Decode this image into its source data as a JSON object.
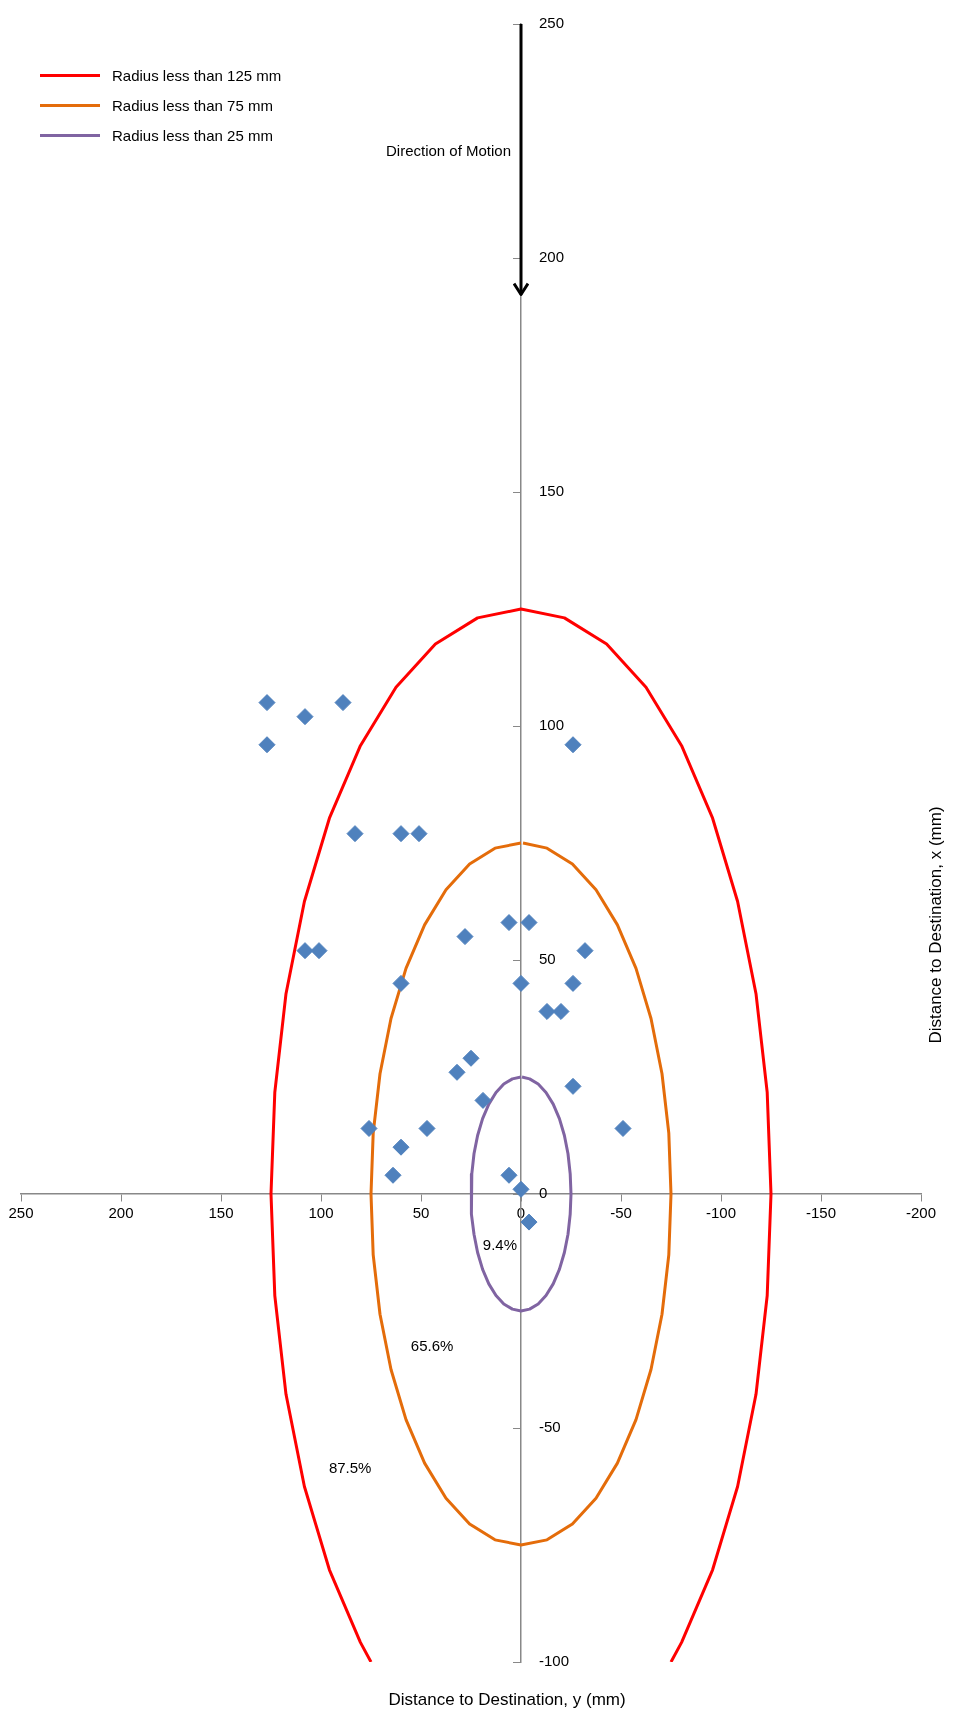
{
  "chart_data": {
    "type": "scatter",
    "xlabel": "Distance to Destination, y (mm)",
    "ylabel": "Distance to Destination, x (mm)",
    "xlim": [
      250,
      -200
    ],
    "xticks": [
      250,
      200,
      150,
      100,
      50,
      0,
      -50,
      -100,
      -150,
      -200
    ],
    "ylim": [
      -100,
      250
    ],
    "yticks": [
      -100,
      -50,
      0,
      50,
      100,
      150,
      200,
      250
    ],
    "grid": false,
    "legend": "top left",
    "marker": "diamond",
    "series": [
      {
        "name": "Radius less than 125 mm",
        "type": "line",
        "marker": "none",
        "color": "#ff0000",
        "values": [
          -100,
          -95.8,
          -80.3,
          -62.5,
          -42.8,
          -21.7,
          0,
          21.7,
          42.8,
          62.5,
          80.3,
          95.8,
          108.3,
          117.5,
          123.1,
          125,
          123.1,
          117.5,
          108.3,
          95.8,
          80.3,
          62.5,
          42.8,
          21.7,
          0,
          -21.7,
          -42.8,
          -62.5,
          -80.3,
          -95.8,
          -100
        ],
        "x": [
          -75,
          -80.3,
          -95.8,
          -108.3,
          -117.5,
          -123.1,
          -125,
          -123.1,
          -117.5,
          -108.3,
          -95.8,
          -80.3,
          -62.5,
          -42.8,
          -21.7,
          0,
          21.7,
          42.8,
          62.5,
          80.3,
          95.8,
          108.3,
          117.5,
          123.1,
          125,
          123.1,
          117.5,
          108.3,
          95.8,
          80.3,
          75
        ]
      },
      {
        "name": "Radius less than 75 mm",
        "type": "line",
        "marker": "none",
        "color": "#e46c0a",
        "values": [
          75,
          73.9,
          70.5,
          65,
          57.5,
          48.2,
          37.5,
          25.7,
          13,
          0,
          -13,
          -25.7,
          -37.5,
          -48.2,
          -57.5,
          -65,
          -70.5,
          -73.9,
          -75,
          -73.9,
          -70.5,
          -65,
          -57.5,
          -48.2,
          -37.5,
          -25.7,
          -13,
          0,
          13,
          25.7,
          37.5,
          48.2,
          57.5,
          65,
          70.5,
          73.9,
          75
        ],
        "x": [
          0,
          13,
          25.7,
          37.5,
          48.2,
          57.5,
          65,
          70.5,
          73.9,
          75,
          73.9,
          70.5,
          65,
          57.5,
          48.2,
          37.5,
          25.7,
          13,
          0,
          -13,
          -25.7,
          -37.5,
          -48.2,
          -57.5,
          -65,
          -70.5,
          -73.9,
          -75,
          -73.9,
          -70.5,
          -65,
          -57.5,
          -48.2,
          -37.5,
          -25.7,
          -13,
          -1
        ]
      },
      {
        "name": "Radius less than 25 mm",
        "type": "line",
        "marker": "none",
        "color": "#8064a2",
        "values": [
          25,
          24.6,
          23.5,
          21.7,
          19.2,
          16.1,
          12.5,
          8.6,
          4.3,
          0,
          -4.3,
          -8.6,
          -12.5,
          -16.1,
          -19.2,
          -21.7,
          -23.5,
          -24.6,
          -25,
          -24.6,
          -23.5,
          -21.7,
          -19.2,
          -16.1,
          -12.5,
          -8.6,
          -4.3,
          0,
          4.3,
          8.6,
          12.5,
          16.1,
          19.2,
          21.7,
          23.5,
          24.6,
          25
        ],
        "x": [
          0,
          4.3,
          8.6,
          12.5,
          16.1,
          19.2,
          21.7,
          23.5,
          24.6,
          25,
          24.6,
          23.5,
          21.7,
          19.2,
          16.1,
          12.5,
          8.6,
          4.3,
          0,
          -4.3,
          -8.6,
          -12.5,
          -16.1,
          -19.2,
          -21.7,
          -23.5,
          -24.6,
          -25,
          -24.6,
          -23.5,
          -21.7,
          -19.2,
          -16.1,
          -12.5,
          -8.6,
          -4.3,
          -0.5
        ]
      },
      {
        "type": "scatter",
        "color": "#4f81bd",
        "values": [
          105,
          102,
          105,
          96,
          96,
          77,
          77,
          77,
          58,
          58,
          55,
          52,
          52,
          52,
          45,
          45,
          45,
          39,
          39,
          29,
          26,
          23,
          20,
          14,
          14,
          14,
          10,
          4,
          4,
          1,
          -6
        ],
        "x": [
          127,
          108,
          89,
          127,
          -26,
          83,
          60,
          51,
          6,
          -4,
          28,
          108,
          101,
          -32,
          60,
          0,
          -26,
          -13,
          -20,
          25,
          32,
          -26,
          19,
          76,
          47,
          -51,
          60,
          64,
          6,
          0,
          -4
        ]
      }
    ],
    "annotations": [
      "9.4%",
      "65.6%",
      "87.5%",
      "Direction of Motion"
    ]
  }
}
